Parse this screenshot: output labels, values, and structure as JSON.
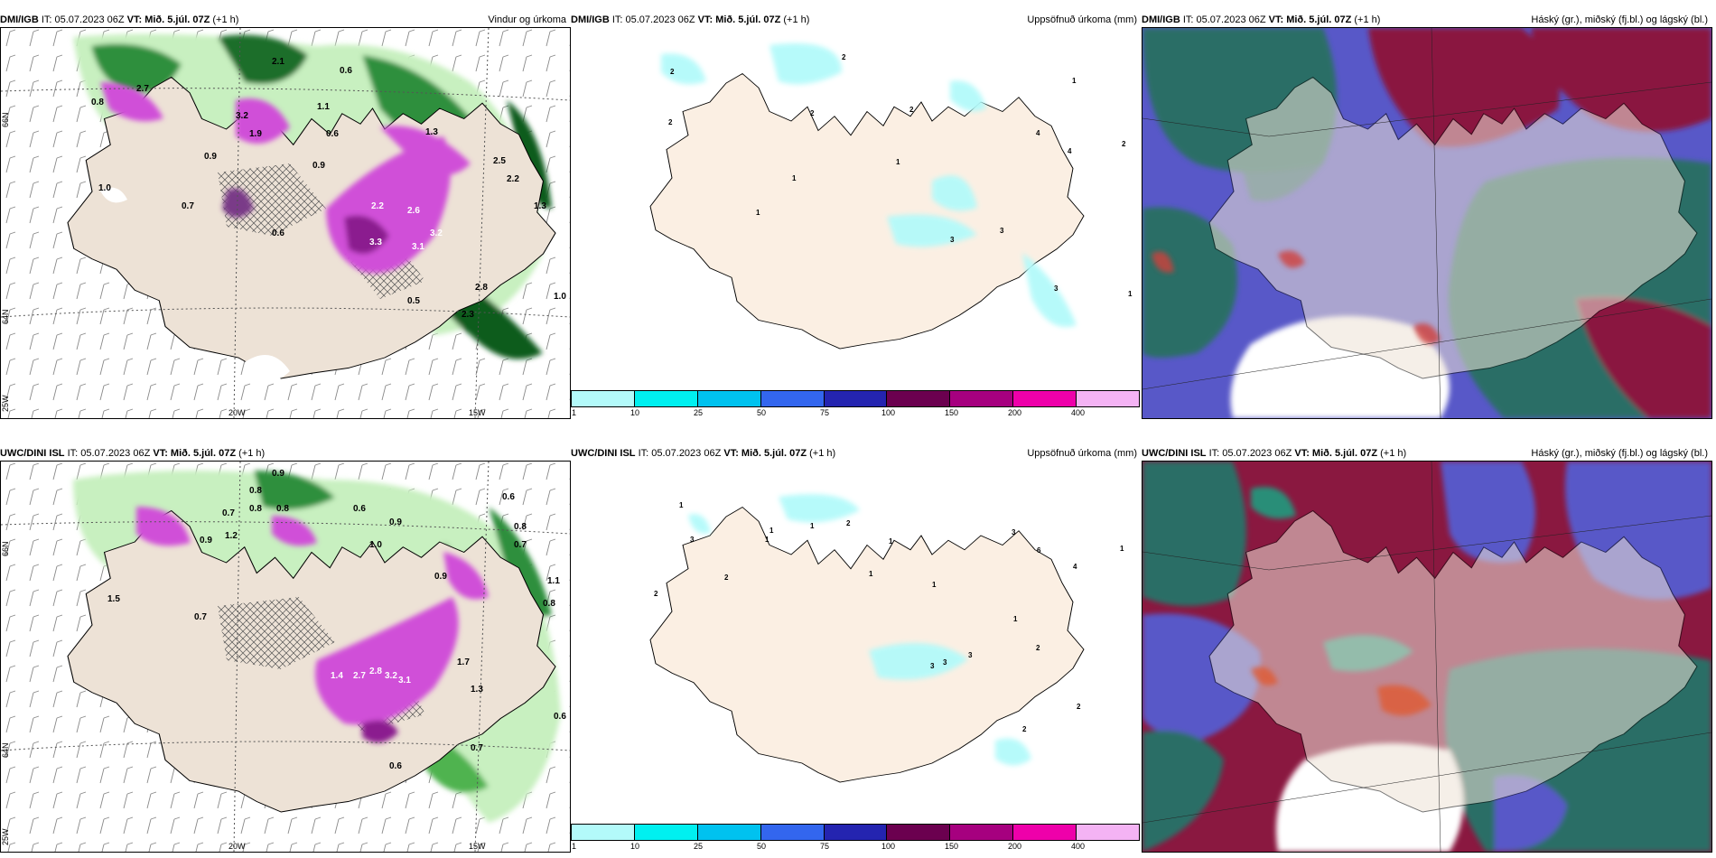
{
  "panels": [
    {
      "id": "dmi-wind",
      "header": {
        "model": "DMI/IGB",
        "it": "IT: 05.07.2023 06Z",
        "vt": "VT: Mið. 5.júl. 07Z",
        "lead": "(+1 h)",
        "title": "Vindur og úrkoma"
      },
      "lat_labels": [
        "66N",
        "64N",
        "25W"
      ],
      "lon_labels": [
        "20W",
        "15W"
      ],
      "values": [
        "2.7",
        "0.8",
        "2.1",
        "0.6",
        "1.1",
        "3.2",
        "1.9",
        "0.6",
        "0.9",
        "1.3",
        "0.9",
        "1.0",
        "0.7",
        "0.6",
        "2.2",
        "2.6",
        "3.3",
        "3.1",
        "3.2",
        "2.5",
        "2.2",
        "1.3",
        "2.8",
        "2.3",
        "1.0",
        "0.5"
      ]
    },
    {
      "id": "dmi-precip",
      "header": {
        "model": "DMI/IGB",
        "it": "IT: 05.07.2023 06Z",
        "vt": "VT: Mið. 5.júl. 07Z",
        "lead": "(+1 h)",
        "title": "Uppsöfnuð úrkoma (mm)"
      },
      "values": [
        "2",
        "2",
        "2",
        "2",
        "2",
        "1",
        "4",
        "4",
        "2",
        "1",
        "1",
        "1",
        "3",
        "3",
        "3",
        "1"
      ],
      "colorbar": {
        "ticks": [
          "1",
          "10",
          "25",
          "50",
          "75",
          "100",
          "150",
          "200",
          "400"
        ],
        "colors": [
          "#b3fafa",
          "#00f0f0",
          "#00c2ef",
          "#3366ee",
          "#2424b0",
          "#6b004f",
          "#a6007f",
          "#ee00aa",
          "#f4b3f4"
        ]
      }
    },
    {
      "id": "dmi-cloud",
      "header": {
        "model": "DMI/IGB",
        "it": "IT: 05.07.2023 06Z",
        "vt": "VT: Mið. 5.júl. 07Z",
        "lead": "(+1 h)",
        "title": "Háský (gr.), miðský (fj.bl.) og lágský (bl.)"
      }
    },
    {
      "id": "uwc-wind",
      "header": {
        "model": "UWC/DINI ISL",
        "it": "IT: 05.07.2023 06Z",
        "vt": "VT: Mið. 5.júl. 07Z",
        "lead": "(+1 h)",
        "title": ""
      },
      "lat_labels": [
        "66N",
        "64N",
        "25W"
      ],
      "lon_labels": [
        "20W",
        "15W"
      ],
      "values": [
        "0.9",
        "0.8",
        "0.7",
        "0.8",
        "0.8",
        "0.6",
        "0.6",
        "0.9",
        "1.2",
        "0.9",
        "1.0",
        "0.8",
        "0.7",
        "1.5",
        "0.7",
        "1.4",
        "2.7",
        "2.8",
        "3.2",
        "3.1",
        "1.7",
        "1.3",
        "1.1",
        "0.8",
        "0.7",
        "0.6",
        "0.9",
        "0.6"
      ]
    },
    {
      "id": "uwc-precip",
      "header": {
        "model": "UWC/DINI ISL",
        "it": "IT: 05.07.2023 06Z",
        "vt": "VT: Mið. 5.júl. 07Z",
        "lead": "(+1 h)",
        "title": "Uppsöfnuð úrkoma (mm)"
      },
      "values": [
        "1",
        "3",
        "2",
        "1",
        "2",
        "1",
        "1",
        "2",
        "1",
        "3",
        "6",
        "4",
        "1",
        "1",
        "1",
        "3",
        "3",
        "3",
        "2",
        "2",
        "1",
        "2"
      ],
      "colorbar": {
        "ticks": [
          "1",
          "10",
          "25",
          "50",
          "75",
          "100",
          "150",
          "200",
          "400"
        ],
        "colors": [
          "#b3fafa",
          "#00f0f0",
          "#00c2ef",
          "#3366ee",
          "#2424b0",
          "#6b004f",
          "#a6007f",
          "#ee00aa",
          "#f4b3f4"
        ]
      }
    },
    {
      "id": "uwc-cloud",
      "header": {
        "model": "UWC/DINI ISL",
        "it": "IT: 05.07.2023 06Z",
        "vt": "VT: Mið. 5.júl. 07Z",
        "lead": "(+1 h)",
        "title": "Háský (gr.), miðský (fj.bl.) og lágský (bl.)"
      }
    }
  ],
  "colors": {
    "land": "#ede2d6",
    "land_light": "#fbefe3",
    "green_dark": "#0a5c1e",
    "green_mid": "#4fb34f",
    "green_light": "#c8f0c0",
    "magenta": "#d050d8",
    "cyan_light": "#b3fafa",
    "cloud_high": "#8a1840",
    "cloud_mid": "#5858c8",
    "cloud_low": "#2a6e66"
  }
}
